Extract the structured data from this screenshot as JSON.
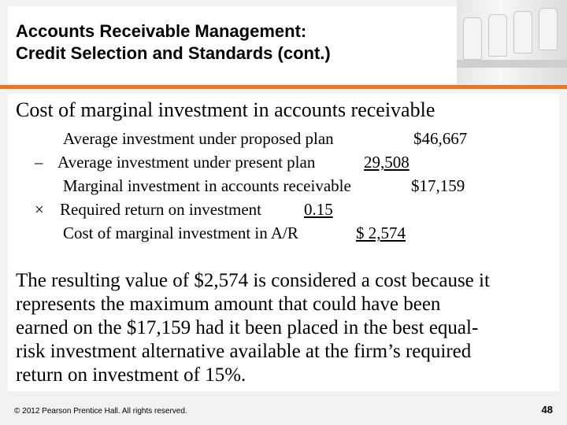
{
  "slide": {
    "title_line1": "Accounts Receivable Management:",
    "title_line2": "Credit Selection and Standards (cont.)",
    "heading": "Cost of marginal investment in accounts receivable",
    "rows": [
      {
        "op": "",
        "label": "Average investment under proposed plan",
        "value": "$46,667"
      },
      {
        "op": "–",
        "label": "Average investment under present plan",
        "value": "29,508"
      },
      {
        "op": "",
        "label": "Marginal investment in accounts receivable",
        "value": "$17,159"
      },
      {
        "op": "×",
        "label": "Required return on investment",
        "value": "0.15"
      },
      {
        "op": "",
        "label": "Cost of marginal investment in A/R",
        "value": "$ 2,574"
      }
    ],
    "paragraph_lines": [
      "The resulting value of $2,574 is considered a cost because it",
      "represents the maximum amount that could have been",
      "earned on the $17,159 had it been placed in the best equal-",
      "risk investment alternative available at the firm’s required",
      "return on investment of 15%."
    ],
    "footer": "© 2012 Pearson Prentice Hall. All rights reserved.",
    "page_number": "48",
    "colors": {
      "accent": "#e87722",
      "background": "#f2f2f2"
    }
  }
}
